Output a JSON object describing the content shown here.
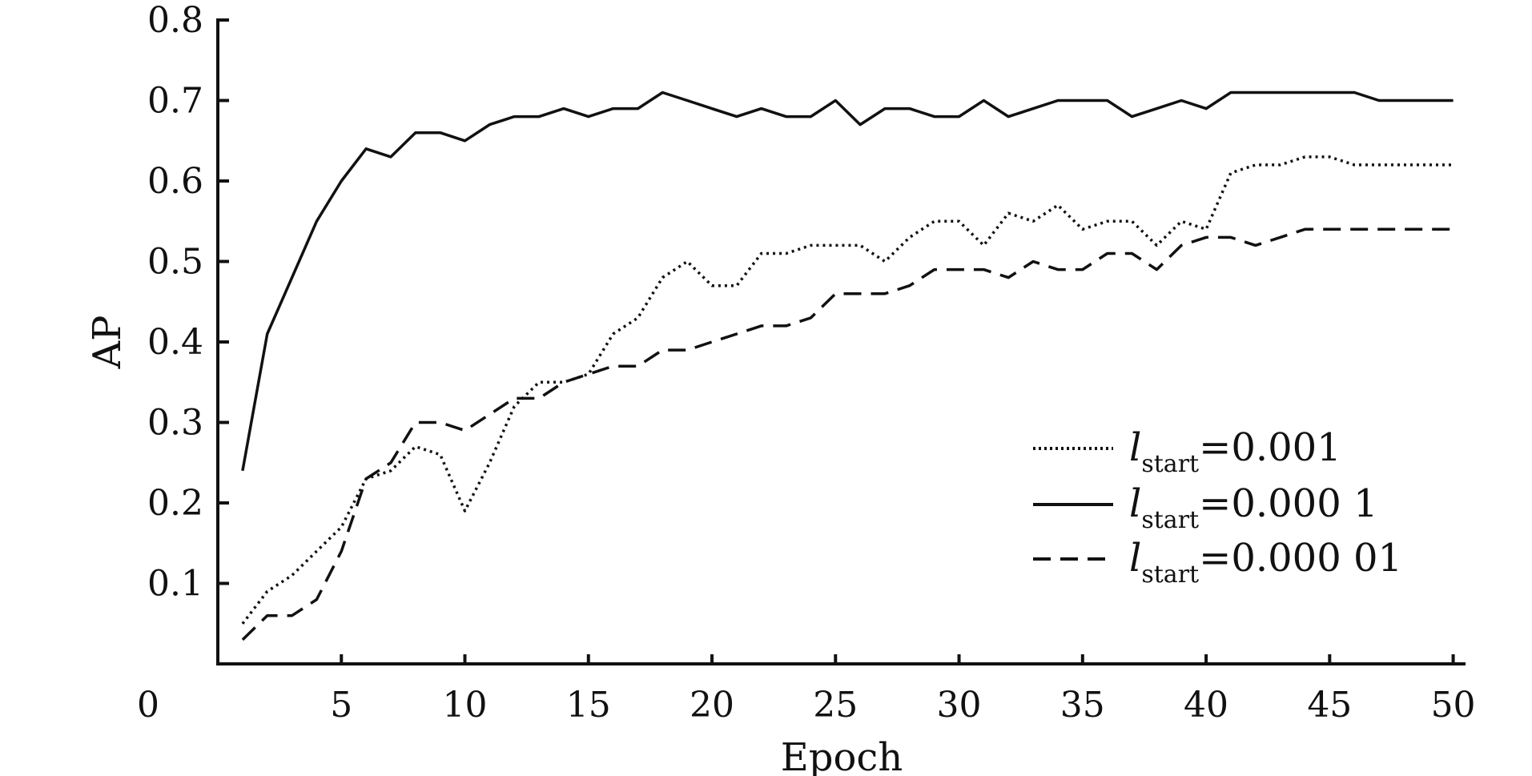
{
  "chart_data": {
    "type": "line",
    "title": "",
    "xlabel": "Epoch",
    "ylabel": "AP",
    "xlim": [
      0,
      50.5
    ],
    "ylim": [
      0,
      0.8
    ],
    "x_ticks": [
      "0",
      "5",
      "10",
      "15",
      "20",
      "25",
      "30",
      "35",
      "40",
      "45",
      "50"
    ],
    "y_ticks": [
      "0.1",
      "0.2",
      "0.3",
      "0.4",
      "0.5",
      "0.6",
      "0.7",
      "0.8"
    ],
    "grid": false,
    "legend_position": "bottom-right",
    "legend_symbol": "l",
    "legend_subscript": "start",
    "x": [
      1,
      2,
      3,
      4,
      5,
      6,
      7,
      8,
      9,
      10,
      11,
      12,
      13,
      14,
      15,
      16,
      17,
      18,
      19,
      20,
      21,
      22,
      23,
      24,
      25,
      26,
      27,
      28,
      29,
      30,
      31,
      32,
      33,
      34,
      35,
      36,
      37,
      38,
      39,
      40,
      41,
      42,
      43,
      44,
      45,
      46,
      47,
      48,
      49,
      50
    ],
    "series": [
      {
        "name": "=0.001",
        "style": "dotted",
        "values": [
          0.05,
          0.09,
          0.11,
          0.14,
          0.17,
          0.23,
          0.24,
          0.27,
          0.26,
          0.19,
          0.25,
          0.32,
          0.35,
          0.35,
          0.36,
          0.41,
          0.43,
          0.48,
          0.5,
          0.47,
          0.47,
          0.51,
          0.51,
          0.52,
          0.52,
          0.52,
          0.5,
          0.53,
          0.55,
          0.55,
          0.52,
          0.56,
          0.55,
          0.57,
          0.54,
          0.55,
          0.55,
          0.52,
          0.55,
          0.54,
          0.61,
          0.62,
          0.62,
          0.63,
          0.63,
          0.62,
          0.62,
          0.62,
          0.62,
          0.62
        ]
      },
      {
        "name": "=0.000 1",
        "style": "solid",
        "values": [
          0.24,
          0.41,
          0.48,
          0.55,
          0.6,
          0.64,
          0.63,
          0.66,
          0.66,
          0.65,
          0.67,
          0.68,
          0.68,
          0.69,
          0.68,
          0.69,
          0.69,
          0.71,
          0.7,
          0.69,
          0.68,
          0.69,
          0.68,
          0.68,
          0.7,
          0.67,
          0.69,
          0.69,
          0.68,
          0.68,
          0.7,
          0.68,
          0.69,
          0.7,
          0.7,
          0.7,
          0.68,
          0.69,
          0.7,
          0.69,
          0.71,
          0.71,
          0.71,
          0.71,
          0.71,
          0.71,
          0.7,
          0.7,
          0.7,
          0.7
        ]
      },
      {
        "name": "=0.000 01",
        "style": "dashed",
        "values": [
          0.03,
          0.06,
          0.06,
          0.08,
          0.14,
          0.23,
          0.25,
          0.3,
          0.3,
          0.29,
          0.31,
          0.33,
          0.33,
          0.35,
          0.36,
          0.37,
          0.37,
          0.39,
          0.39,
          0.4,
          0.41,
          0.42,
          0.42,
          0.43,
          0.46,
          0.46,
          0.46,
          0.47,
          0.49,
          0.49,
          0.49,
          0.48,
          0.5,
          0.49,
          0.49,
          0.51,
          0.51,
          0.49,
          0.52,
          0.53,
          0.53,
          0.52,
          0.53,
          0.54,
          0.54,
          0.54,
          0.54,
          0.54,
          0.54,
          0.54
        ]
      }
    ]
  }
}
